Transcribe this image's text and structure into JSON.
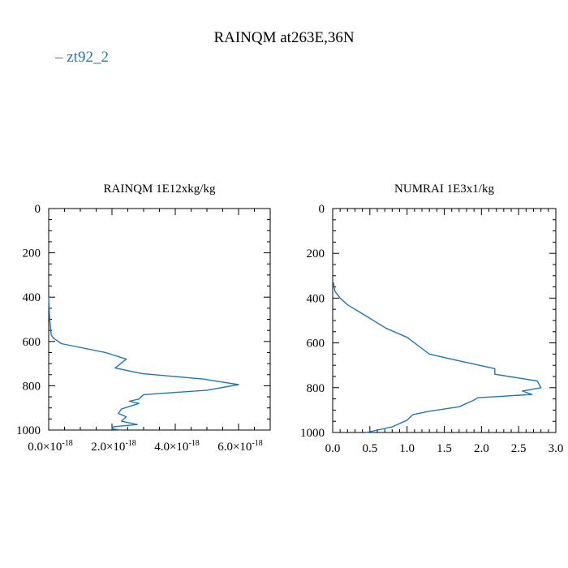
{
  "title": "RAINQM at263E,36N",
  "legend": {
    "label": "zt92_2",
    "color": "#1f77b4"
  },
  "chart_data": [
    {
      "type": "line",
      "title": "RAINQM  1E12xkg/kg",
      "orientation": "profile",
      "xlim": [
        0,
        7e-18
      ],
      "ylim": [
        1000,
        0
      ],
      "x_ticks": [
        {
          "value": 0,
          "mant": "0.0",
          "exp": "-18"
        },
        {
          "value": 2e-18,
          "mant": "2.0",
          "exp": "-18"
        },
        {
          "value": 4e-18,
          "mant": "4.0",
          "exp": "-18"
        },
        {
          "value": 6e-18,
          "mant": "6.0",
          "exp": "-18"
        }
      ],
      "y_ticks": [
        "0",
        "200",
        "400",
        "600",
        "800",
        "1000"
      ],
      "series": [
        {
          "color": "#1f77b4",
          "x": [
            0,
            3e-20,
            8e-20,
            1.5e-19,
            4e-19,
            1.8e-18,
            2.45e-18,
            2.1e-18,
            2.95e-18,
            4.9e-18,
            6e-18,
            5e-18,
            3e-18,
            2.85e-18,
            2.55e-18,
            2.85e-18,
            2.3e-18,
            2.2e-18,
            2.45e-18,
            2.3e-18,
            2.8e-18,
            2.05e-18,
            2e-18,
            2.3e-18
          ],
          "y": [
            400,
            500,
            570,
            585,
            610,
            650,
            680,
            720,
            745,
            770,
            795,
            820,
            840,
            860,
            870,
            880,
            905,
            925,
            940,
            960,
            975,
            985,
            995,
            1000
          ]
        }
      ]
    },
    {
      "type": "line",
      "title": "NUMRAI  1E3x1/kg",
      "orientation": "profile",
      "xlim": [
        0,
        3
      ],
      "ylim": [
        1000,
        0
      ],
      "x_ticks": [
        "0.0",
        "0.5",
        "1.0",
        "1.5",
        "2.0",
        "2.5",
        "3.0"
      ],
      "y_ticks": [
        "0",
        "200",
        "400",
        "600",
        "800",
        "1000"
      ],
      "series": [
        {
          "color": "#1f77b4",
          "x": [
            0.01,
            0.03,
            0.1,
            0.2,
            0.45,
            0.72,
            1.0,
            1.2,
            1.3,
            1.7,
            2.18,
            2.18,
            2.75,
            2.8,
            2.55,
            2.68,
            1.95,
            1.9,
            1.7,
            1.3,
            1.08,
            1.0,
            0.8,
            0.45
          ],
          "y": [
            330,
            370,
            400,
            430,
            480,
            535,
            575,
            625,
            650,
            680,
            715,
            740,
            770,
            800,
            815,
            830,
            845,
            855,
            885,
            905,
            920,
            945,
            975,
            1000
          ]
        }
      ]
    }
  ]
}
